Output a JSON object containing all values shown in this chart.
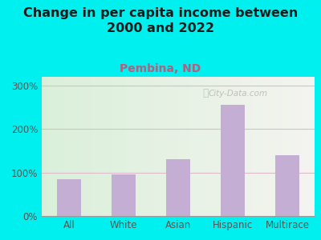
{
  "title": "Change in per capita income between\n2000 and 2022",
  "subtitle": "Pembina, ND",
  "categories": [
    "All",
    "White",
    "Asian",
    "Hispanic",
    "Multirace"
  ],
  "values": [
    85,
    95,
    130,
    255,
    140
  ],
  "bar_color": "#c4aed4",
  "title_fontsize": 11.5,
  "subtitle_fontsize": 10,
  "subtitle_color": "#b06080",
  "title_color": "#1a1a1a",
  "background_outer": "#00f0f0",
  "ylim": [
    0,
    320
  ],
  "yticks": [
    0,
    100,
    200,
    300
  ],
  "ytick_labels": [
    "0%",
    "100%",
    "200%",
    "300%"
  ],
  "grid_color": "#ddbbcc",
  "tick_color": "#555555",
  "watermark": "City-Data.com"
}
